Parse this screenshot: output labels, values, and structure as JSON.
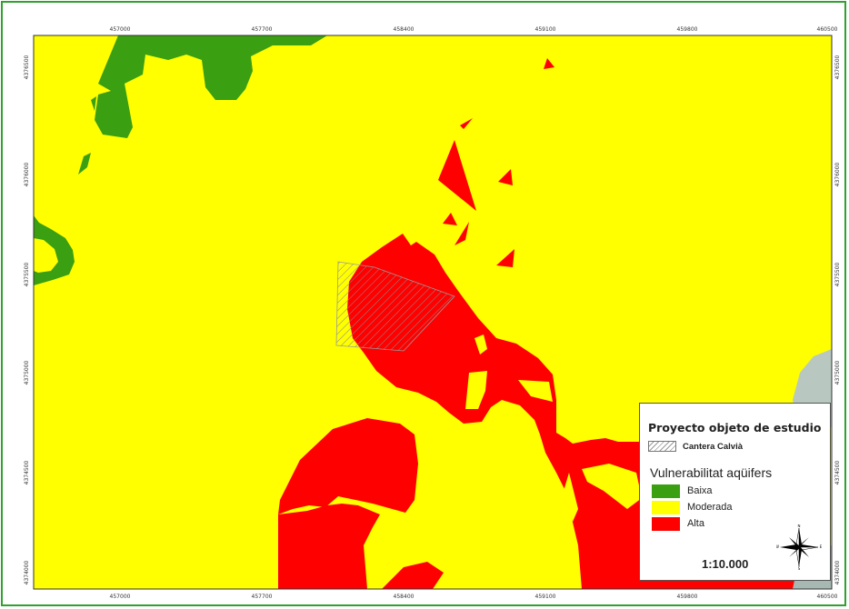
{
  "map": {
    "x_ticks": [
      "457000",
      "457700",
      "458400",
      "459100",
      "459800",
      "460500"
    ],
    "y_ticks": [
      "4376500",
      "4376000",
      "4375500",
      "4375000",
      "4374500",
      "4374000"
    ]
  },
  "legend": {
    "title": "Proyecto objeto de estudio",
    "study_area_label": "Cantera Calvià",
    "vulnerability_title": "Vulnerabilitat aqüifers",
    "classes": [
      {
        "label": "Baixa",
        "color": "#3a9f11"
      },
      {
        "label": "Moderada",
        "color": "#ffff00"
      },
      {
        "label": "Alta",
        "color": "#ff0000"
      }
    ],
    "scale": "1:10.000",
    "compass": {
      "n": "N",
      "s": "S",
      "e": "E",
      "w": "W"
    }
  },
  "colors": {
    "frame": "#2fa12f",
    "background": "#ffff00",
    "low": "#3a9f11",
    "high": "#ff0000"
  }
}
